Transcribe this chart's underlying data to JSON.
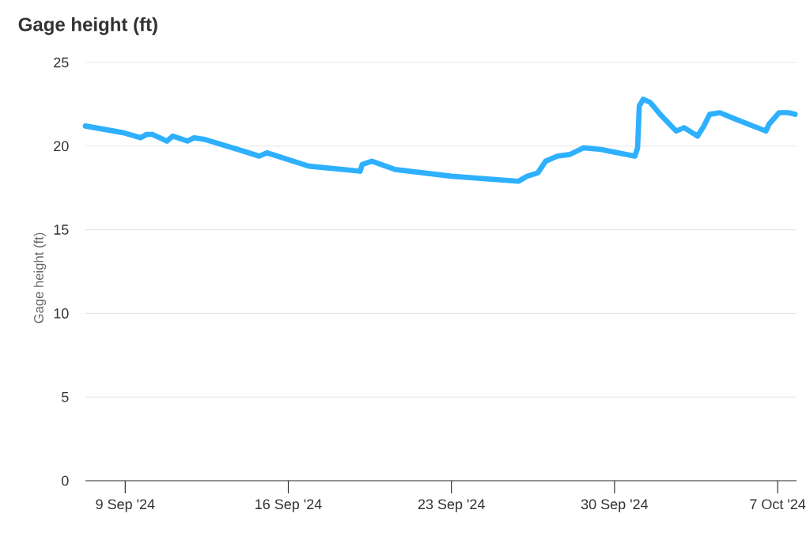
{
  "chart_data": {
    "type": "line",
    "title": "Gage height (ft)",
    "ylabel": "Gage height (ft)",
    "x": [
      "2024-09-07T07:00",
      "2024-09-08T22:00",
      "2024-09-09T16:00",
      "2024-09-09T22:00",
      "2024-09-10T04:00",
      "2024-09-10T19:00",
      "2024-09-11T01:00",
      "2024-09-11T16:00",
      "2024-09-11T23:00",
      "2024-09-12T10:00",
      "2024-09-13T20:00",
      "2024-09-14T18:00",
      "2024-09-15T02:00",
      "2024-09-16T21:00",
      "2024-09-19T02:00",
      "2024-09-19T04:00",
      "2024-09-19T14:00",
      "2024-09-20T14:00",
      "2024-09-21T19:00",
      "2024-09-23T00:00",
      "2024-09-25T21:00",
      "2024-09-26T06:00",
      "2024-09-26T17:00",
      "2024-09-27T01:00",
      "2024-09-27T13:00",
      "2024-09-28T02:00",
      "2024-09-28T16:00",
      "2024-09-29T10:00",
      "2024-09-30T21:00",
      "2024-09-30T23:45",
      "2024-10-01T01:30",
      "2024-10-01T05:30",
      "2024-10-01T13:00",
      "2024-10-01T23:00",
      "2024-10-02T15:30",
      "2024-10-02T23:45",
      "2024-10-03T13:30",
      "2024-10-03T20:00",
      "2024-10-04T02:00",
      "2024-10-04T12:30",
      "2024-10-05T05:00",
      "2024-10-06T12:00",
      "2024-10-06T15:00",
      "2024-10-07T01:30",
      "2024-10-07T11:00",
      "2024-10-07T18:00"
    ],
    "series": [
      {
        "color": "#2eb0ff",
        "values": [
          21.2,
          20.8,
          20.5,
          20.7,
          20.7,
          20.3,
          20.6,
          20.3,
          20.5,
          20.4,
          19.8,
          19.4,
          19.6,
          18.8,
          18.5,
          18.9,
          19.1,
          18.6,
          18.4,
          18.2,
          17.9,
          18.2,
          18.4,
          19.1,
          19.4,
          19.5,
          19.9,
          19.8,
          19.4,
          19.9,
          22.4,
          22.8,
          22.6,
          21.9,
          20.9,
          21.1,
          20.6,
          21.2,
          21.9,
          22.0,
          21.6,
          20.9,
          21.3,
          22.0,
          22.0,
          21.9
        ]
      }
    ],
    "xlim": [
      "2024-09-07T07:00",
      "2024-10-07T19:30"
    ],
    "xticks": [
      {
        "value": "2024-09-09",
        "label": "9 Sep '24"
      },
      {
        "value": "2024-09-16",
        "label": "16 Sep '24"
      },
      {
        "value": "2024-09-23",
        "label": "23 Sep '24"
      },
      {
        "value": "2024-09-30",
        "label": "30 Sep '24"
      },
      {
        "value": "2024-10-07",
        "label": "7 Oct '24"
      }
    ],
    "ylim": [
      0,
      25
    ],
    "yticks": [
      0,
      5,
      10,
      15,
      20,
      25
    ],
    "grid": "y",
    "line_style": "solid"
  }
}
